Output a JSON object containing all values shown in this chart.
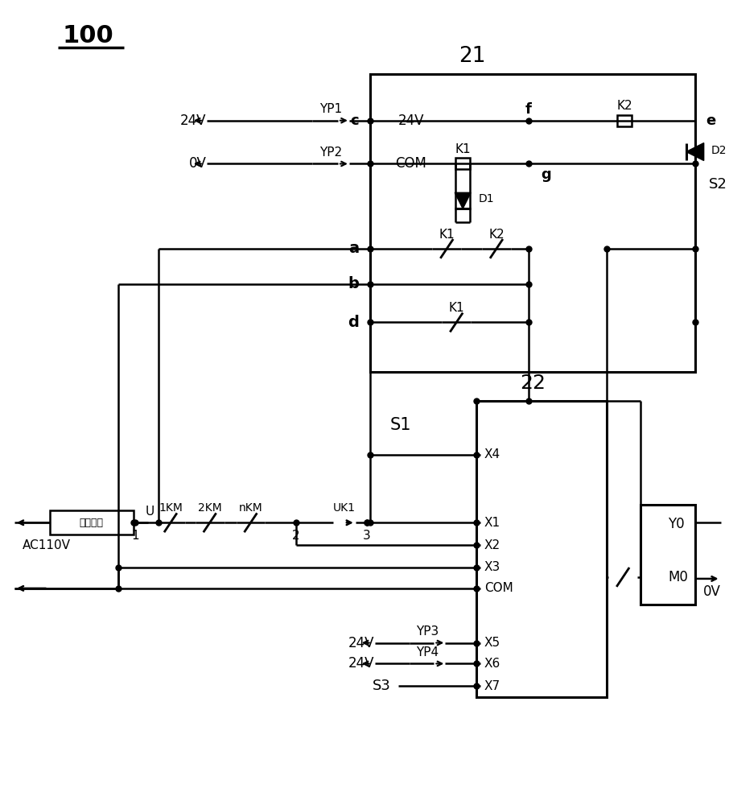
{
  "bg_color": "#ffffff",
  "line_color": "#000000",
  "figsize": [
    9.06,
    10.0
  ],
  "dpi": 100,
  "label_100": "100",
  "label_21": "21",
  "label_22": "22",
  "label_S1": "S1",
  "label_S2": "S2",
  "label_S3": "S3",
  "label_AC": "AC110V",
  "label_safety": "安全回路",
  "label_0V": "0V",
  "label_24V": "24V",
  "label_OV": "0V",
  "label_YP1": "YP1",
  "label_YP2": "YP2",
  "label_YP3": "YP3",
  "label_YP4": "YP4",
  "label_c": "c",
  "label_f": "f",
  "label_e": "e",
  "label_g": "g",
  "label_a": "a",
  "label_b": "b",
  "label_d": "d",
  "label_K1": "K1",
  "label_K2": "K2",
  "label_D1": "D1",
  "label_D2": "D2",
  "label_U": "U",
  "label_1KM": "1KM",
  "label_2KM": "2KM",
  "label_nKM": "nKM",
  "label_UK1": "UK1",
  "label_X1": "X1",
  "label_X2": "X2",
  "label_X3": "X3",
  "label_X4": "X4",
  "label_X5": "X5",
  "label_X6": "X6",
  "label_X7": "X7",
  "label_COM": "COM",
  "label_Y0": "Y0",
  "label_M0": "M0",
  "label_1": "1",
  "label_2": "2",
  "label_3": "3"
}
